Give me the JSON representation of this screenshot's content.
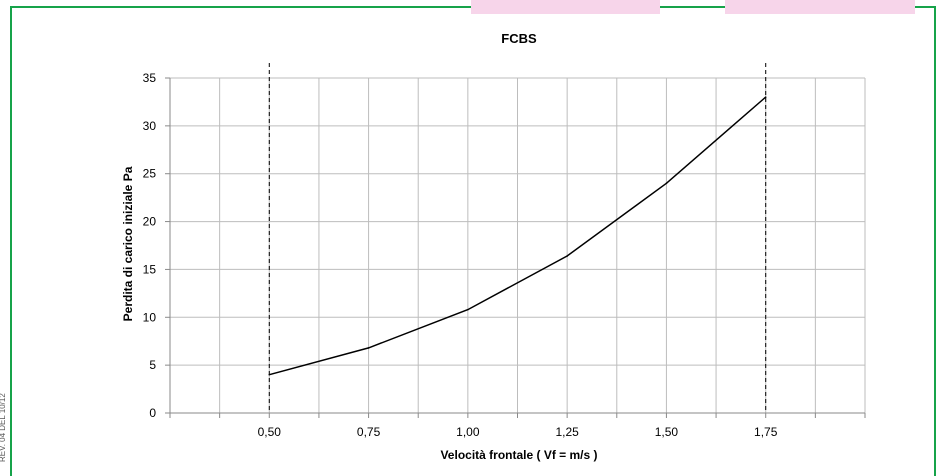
{
  "chart_data": {
    "type": "line",
    "title": "FCBS",
    "xlabel": "Velocità frontale  ( Vf =  m/s )",
    "ylabel": "Perdita di carico iniziale Pa",
    "xlim": [
      0.25,
      2.0
    ],
    "ylim": [
      0,
      35
    ],
    "x_ticks": [
      "0,50",
      "0,75",
      "1,00",
      "1,25",
      "1,50",
      "1,75"
    ],
    "x_tick_values": [
      0.5,
      0.75,
      1.0,
      1.25,
      1.5,
      1.75
    ],
    "y_ticks": [
      "0",
      "5",
      "10",
      "15",
      "20",
      "25",
      "30",
      "35"
    ],
    "y_tick_values": [
      0,
      5,
      10,
      15,
      20,
      25,
      30,
      35
    ],
    "series": [
      {
        "x": [
          0.5,
          0.75,
          1.0,
          1.25,
          1.5,
          1.75
        ],
        "y": [
          4.0,
          6.8,
          10.8,
          16.4,
          24.0,
          33.0
        ],
        "color": "#000000"
      }
    ],
    "reference_lines_x": [
      0.5,
      1.75
    ],
    "grid": true,
    "legend": "none"
  },
  "side_text": "REV. 04 DEL 10/12"
}
